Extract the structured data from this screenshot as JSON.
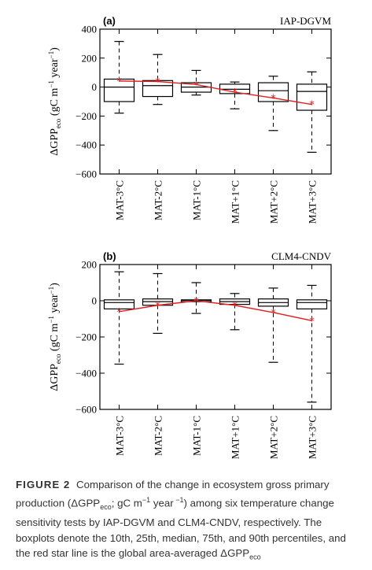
{
  "chart_data": [
    {
      "type": "box",
      "panel_label": "(a)",
      "model": "IAP-DGVM",
      "ylabel": "ΔGPPeco (gC m⁻¹ year⁻¹)",
      "ylabel_parts": {
        "a": "ΔGPP",
        "sub": "eco",
        "b": " (gC m",
        "sup1": "−1",
        "c": " year",
        "sup2": "−1",
        "d": ")"
      },
      "ylim": [
        -600,
        400
      ],
      "yticks": [
        400,
        200,
        0,
        -200,
        -400,
        -600
      ],
      "ytick_labels": [
        "400",
        "200",
        "0",
        "−200",
        "−400",
        "−600"
      ],
      "categories": [
        "MAT-3°C",
        "MAT-2°C",
        "MAT-1°C",
        "MAT+1°C",
        "MAT+2°C",
        "MAT+3°C"
      ],
      "boxes": [
        {
          "p10": -180,
          "p25": -100,
          "median": 0,
          "p75": 55,
          "p90": 315
        },
        {
          "p10": -120,
          "p25": -65,
          "median": 10,
          "p75": 45,
          "p90": 225
        },
        {
          "p10": -55,
          "p25": -35,
          "median": 0,
          "p75": 30,
          "p90": 115
        },
        {
          "p10": -150,
          "p25": -45,
          "median": -15,
          "p75": 20,
          "p90": 35
        },
        {
          "p10": -300,
          "p25": -100,
          "median": -25,
          "p75": 30,
          "p90": 75
        },
        {
          "p10": -450,
          "p25": -160,
          "median": -30,
          "p75": 20,
          "p90": 105
        }
      ],
      "mean_line": {
        "color": "#e02020",
        "values": [
          42,
          38,
          18,
          -35,
          -75,
          -120
        ]
      }
    },
    {
      "type": "box",
      "panel_label": "(b)",
      "model": "CLM4-CNDV",
      "ylabel": "ΔGPPeco (gC m⁻¹ year⁻¹)",
      "ylabel_parts": {
        "a": "ΔGPP",
        "sub": "eco",
        "b": " (gC m",
        "sup1": "−1",
        "c": " year",
        "sup2": "−1",
        "d": ")"
      },
      "ylim": [
        -600,
        200
      ],
      "yticks": [
        200,
        0,
        -200,
        -400,
        -600
      ],
      "ytick_labels": [
        "200",
        "0",
        "−200",
        "−400",
        "−600"
      ],
      "categories": [
        "MAT-3°C",
        "MAT-2°C",
        "MAT-1°C",
        "MAT+1°C",
        "MAT+2°C",
        "MAT+3°C"
      ],
      "boxes": [
        {
          "p10": -350,
          "p25": -45,
          "median": -10,
          "p75": 5,
          "p90": 160
        },
        {
          "p10": -180,
          "p25": -25,
          "median": -5,
          "p75": 10,
          "p90": 150
        },
        {
          "p10": -70,
          "p25": -5,
          "median": 2,
          "p75": 5,
          "p90": 100
        },
        {
          "p10": -160,
          "p25": -20,
          "median": -5,
          "p75": 10,
          "p90": 40
        },
        {
          "p10": -340,
          "p25": -30,
          "median": -10,
          "p75": 10,
          "p90": 70
        },
        {
          "p10": -560,
          "p25": -45,
          "median": -10,
          "p75": 5,
          "p90": 85
        }
      ],
      "mean_line": {
        "color": "#e02020",
        "values": [
          -60,
          -25,
          0,
          -25,
          -65,
          -110
        ]
      }
    }
  ],
  "caption": {
    "label": "FIGURE 2",
    "t1": "Comparison of the change in ecosystem gross primary production (ΔGPP",
    "s1": "eco",
    "t2": "; gC m",
    "s2": "−1",
    "t3": " year",
    "s3": " −1",
    "t4": ") among six temperature change sensitivity tests by IAP-DGVM and CLM4-CNDV, respectively. The boxplots denote the 10th, 25th, median, 75th, and 90th percentiles, and the red star line is the global area-averaged ΔGPP",
    "s4": "eco"
  }
}
